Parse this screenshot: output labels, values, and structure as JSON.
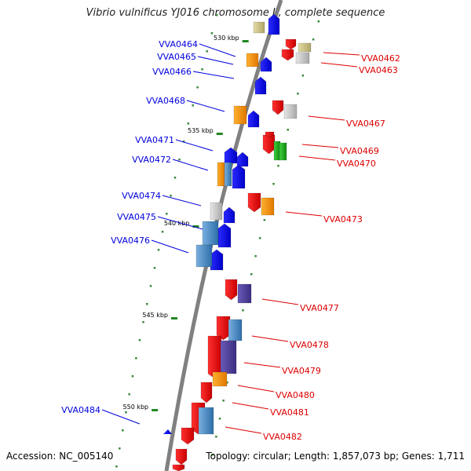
{
  "title": "Vibrio vulnificus YJ016 chromosome II, complete sequence",
  "accession": "Accession: NC_005140",
  "summary": "Topology: circular; Length: 1,857,073 bp; Genes: 1,711",
  "colors": {
    "left_labels": "#0000dd",
    "right_labels": "#dd0000",
    "backbone": "#808080",
    "tick": "#228822"
  },
  "ticks": [
    "530 kbp",
    "535 kbp",
    "540 kbp",
    "545 kbp",
    "550 kbp"
  ],
  "left_genes": [
    "VVA0464",
    "VVA0465",
    "VVA0466",
    "VVA0468",
    "VVA0471",
    "VVA0472",
    "VVA0474",
    "VVA0475",
    "VVA0476",
    "VVA0484"
  ],
  "right_genes": [
    "VVA0462",
    "VVA0463",
    "VVA0467",
    "VVA0469",
    "VVA0470",
    "VVA0473",
    "VVA0477",
    "VVA0478",
    "VVA0479",
    "VVA0480",
    "VVA0481",
    "VVA0482"
  ]
}
